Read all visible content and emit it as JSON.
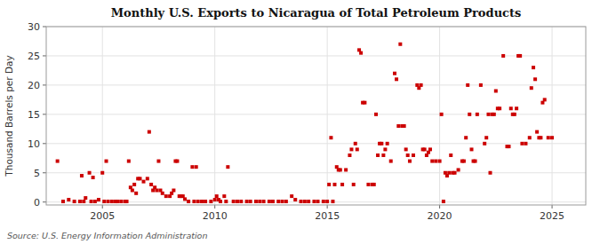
{
  "chart_data": {
    "type": "scatter",
    "title": "Monthly U.S. Exports to Nicaragua of Total Petroleum Products",
    "y_label": "Thousand Barrels per Day",
    "annotations": [
      "Source: U.S. Energy Information Administration"
    ],
    "color": "#CC0000",
    "marker": "square",
    "grid": true,
    "xlim": [
      2002.5,
      2026.5
    ],
    "ylim": [
      -0.5,
      30
    ],
    "xticks": [
      2005,
      2010,
      2015,
      2020,
      2025
    ],
    "yticks": [
      0,
      5,
      10,
      15,
      20,
      25,
      30
    ],
    "x": [
      2003.0,
      2003.25,
      2003.5,
      2003.75,
      2004.0,
      2004.08,
      2004.17,
      2004.25,
      2004.42,
      2004.5,
      2004.58,
      2004.67,
      2004.83,
      2005.0,
      2005.08,
      2005.17,
      2005.25,
      2005.42,
      2005.58,
      2005.67,
      2005.83,
      2006.0,
      2006.08,
      2006.17,
      2006.25,
      2006.33,
      2006.42,
      2006.5,
      2006.58,
      2006.67,
      2006.83,
      2007.0,
      2007.08,
      2007.17,
      2007.25,
      2007.33,
      2007.42,
      2007.5,
      2007.58,
      2007.67,
      2007.83,
      2008.0,
      2008.08,
      2008.17,
      2008.25,
      2008.33,
      2008.42,
      2008.5,
      2008.58,
      2008.67,
      2008.83,
      2009.0,
      2009.08,
      2009.17,
      2009.25,
      2009.42,
      2009.58,
      2009.83,
      2010.0,
      2010.08,
      2010.17,
      2010.25,
      2010.42,
      2010.5,
      2010.58,
      2010.83,
      2011.0,
      2011.17,
      2011.42,
      2011.58,
      2011.83,
      2012.0,
      2012.17,
      2012.42,
      2012.58,
      2012.83,
      2013.0,
      2013.17,
      2013.42,
      2013.58,
      2013.83,
      2014.0,
      2014.17,
      2014.42,
      2014.58,
      2014.83,
      2015.0,
      2015.08,
      2015.17,
      2015.25,
      2015.33,
      2015.42,
      2015.5,
      2015.58,
      2015.67,
      2015.83,
      2016.0,
      2016.08,
      2016.17,
      2016.25,
      2016.33,
      2016.42,
      2016.5,
      2016.58,
      2016.67,
      2016.83,
      2017.0,
      2017.08,
      2017.17,
      2017.25,
      2017.33,
      2017.42,
      2017.5,
      2017.58,
      2017.67,
      2017.83,
      2018.0,
      2018.08,
      2018.17,
      2018.25,
      2018.33,
      2018.42,
      2018.5,
      2018.58,
      2018.67,
      2018.83,
      2019.0,
      2019.08,
      2019.17,
      2019.25,
      2019.33,
      2019.42,
      2019.5,
      2019.58,
      2019.67,
      2019.83,
      2020.0,
      2020.08,
      2020.17,
      2020.25,
      2020.33,
      2020.42,
      2020.5,
      2020.58,
      2020.67,
      2020.83,
      2021.0,
      2021.08,
      2021.17,
      2021.25,
      2021.33,
      2021.42,
      2021.5,
      2021.58,
      2021.67,
      2021.83,
      2022.0,
      2022.08,
      2022.17,
      2022.25,
      2022.33,
      2022.42,
      2022.5,
      2022.58,
      2022.67,
      2022.83,
      2023.0,
      2023.08,
      2023.17,
      2023.25,
      2023.33,
      2023.42,
      2023.5,
      2023.58,
      2023.67,
      2023.83,
      2024.0,
      2024.08,
      2024.17,
      2024.25,
      2024.33,
      2024.42,
      2024.5,
      2024.58,
      2024.67,
      2024.83,
      2025.0
    ],
    "values": [
      7.0,
      0.1,
      0.4,
      0.1,
      0.1,
      4.5,
      0.1,
      0.7,
      5.0,
      0.1,
      4.2,
      0.1,
      0.4,
      5.0,
      0.1,
      7.0,
      0.1,
      0.1,
      0.1,
      0.1,
      0.1,
      0.1,
      0.1,
      7.0,
      2.5,
      2.0,
      3.0,
      1.5,
      4.0,
      4.0,
      3.5,
      4.0,
      12.0,
      3.0,
      2.0,
      2.5,
      2.0,
      7.0,
      2.0,
      1.5,
      1.0,
      1.0,
      1.5,
      2.0,
      7.0,
      7.0,
      1.0,
      1.0,
      1.0,
      0.5,
      0.1,
      6.0,
      0.1,
      6.0,
      0.1,
      0.1,
      0.1,
      0.1,
      0.4,
      1.0,
      0.4,
      0.1,
      1.0,
      0.1,
      6.0,
      0.1,
      0.1,
      0.1,
      0.1,
      0.1,
      0.1,
      0.1,
      0.1,
      0.1,
      0.1,
      0.1,
      0.1,
      0.1,
      1.0,
      0.4,
      0.1,
      0.1,
      0.1,
      0.1,
      0.1,
      0.1,
      0.1,
      3.0,
      11.0,
      0.1,
      3.0,
      6.0,
      5.5,
      5.5,
      3.0,
      5.5,
      8.0,
      9.0,
      3.0,
      10.0,
      9.0,
      26.0,
      25.5,
      17.0,
      17.0,
      3.0,
      3.0,
      3.0,
      15.0,
      8.0,
      10.0,
      10.0,
      8.0,
      9.0,
      10.0,
      7.0,
      22.0,
      21.0,
      13.0,
      27.0,
      13.0,
      13.0,
      9.0,
      8.0,
      7.0,
      8.0,
      20.0,
      19.5,
      20.0,
      9.0,
      9.0,
      8.0,
      8.5,
      9.0,
      7.0,
      7.0,
      7.0,
      15.0,
      0.1,
      5.0,
      4.5,
      5.0,
      8.0,
      5.0,
      5.0,
      5.5,
      7.0,
      7.0,
      11.0,
      20.0,
      15.0,
      9.0,
      7.0,
      7.0,
      15.0,
      20.0,
      10.0,
      11.0,
      15.0,
      5.0,
      15.0,
      15.0,
      19.0,
      16.0,
      16.0,
      25.0,
      9.5,
      9.5,
      16.0,
      15.0,
      15.0,
      16.0,
      25.0,
      25.0,
      10.0,
      10.0,
      11.0,
      19.5,
      23.0,
      21.0,
      12.0,
      11.0,
      11.0,
      17.0,
      17.5,
      11.0,
      11.0
    ]
  }
}
